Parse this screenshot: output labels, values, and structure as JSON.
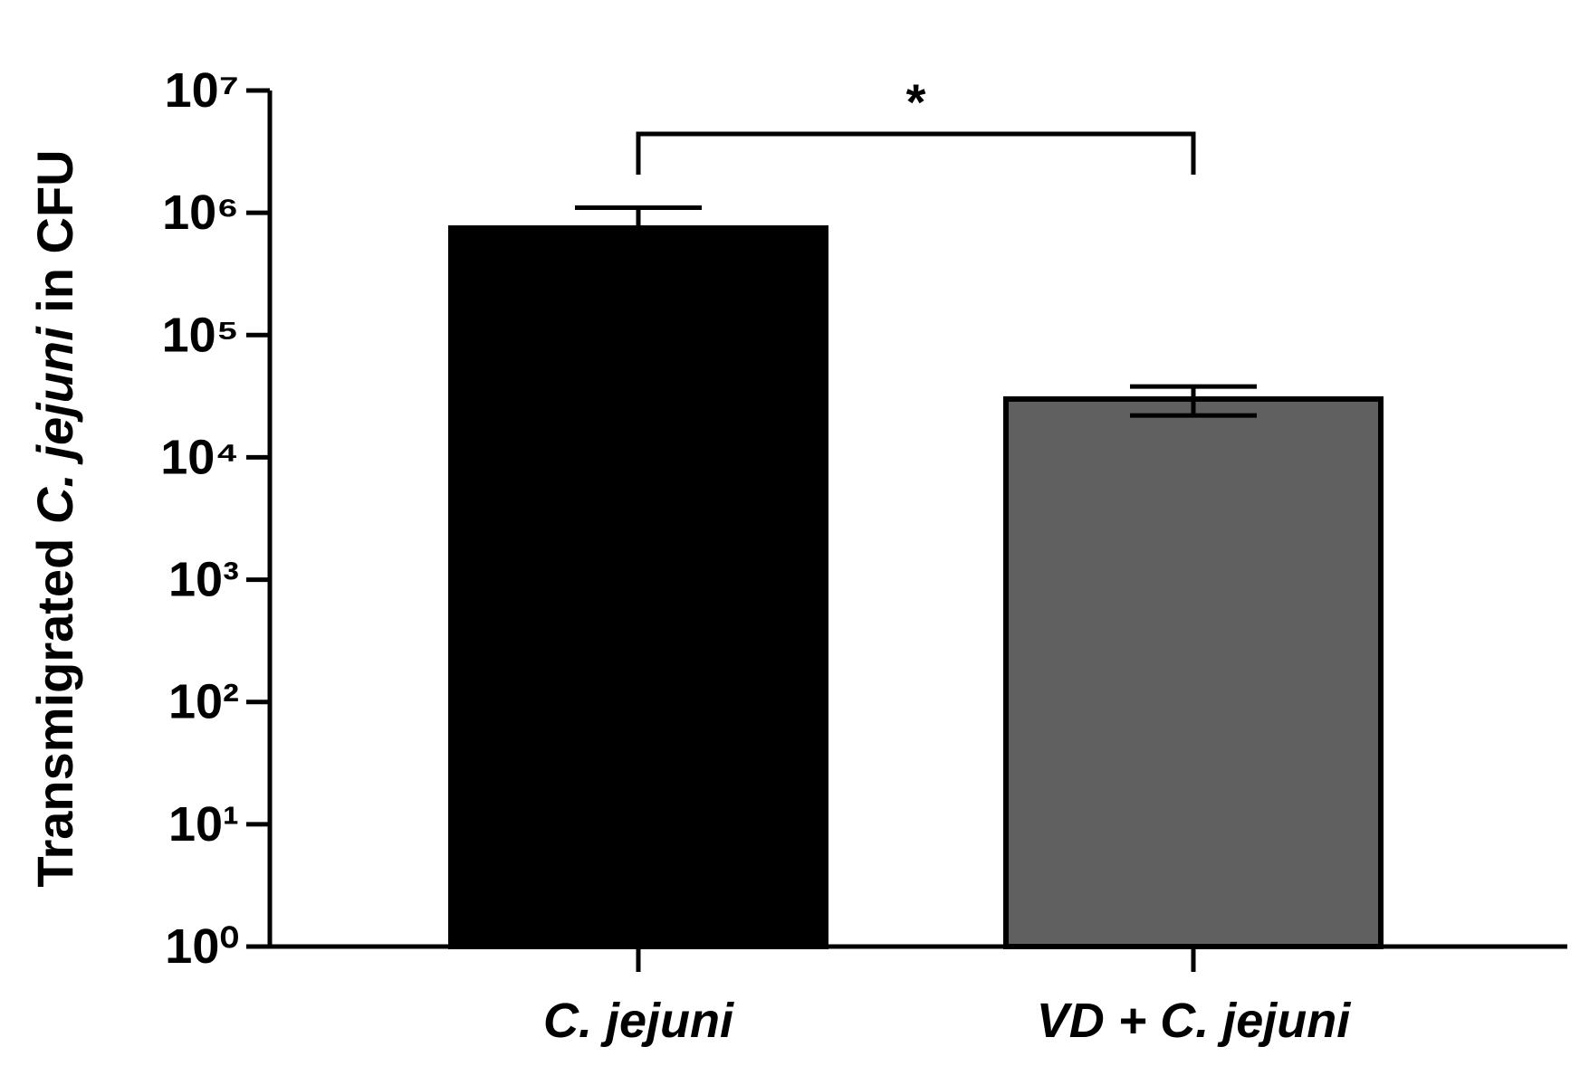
{
  "chart_data": {
    "type": "bar",
    "y_label": [
      {
        "text": "Transmigrated ",
        "italic": false
      },
      {
        "text": "C. jejuni",
        "italic": true
      },
      {
        "text": " in CFU",
        "italic": false
      }
    ],
    "categories": [
      "C. jejuni",
      "VD + C. jejuni"
    ],
    "values": [
      750000,
      30000
    ],
    "errors": [
      350000,
      8000
    ],
    "colors": [
      "#000000",
      "#606060"
    ],
    "log_y": true,
    "ylim": [
      1,
      10000000
    ],
    "yticks": [
      {
        "value": 1,
        "label": "10⁰"
      },
      {
        "value": 10,
        "label": "10¹"
      },
      {
        "value": 100,
        "label": "10²"
      },
      {
        "value": 1000,
        "label": "10³"
      },
      {
        "value": 10000,
        "label": "10⁴"
      },
      {
        "value": 100000,
        "label": "10⁵"
      },
      {
        "value": 1000000,
        "label": "10⁶"
      },
      {
        "value": 10000000,
        "label": "10⁷"
      }
    ],
    "annotations": [
      {
        "text": "*",
        "between": [
          0,
          1
        ]
      }
    ]
  }
}
